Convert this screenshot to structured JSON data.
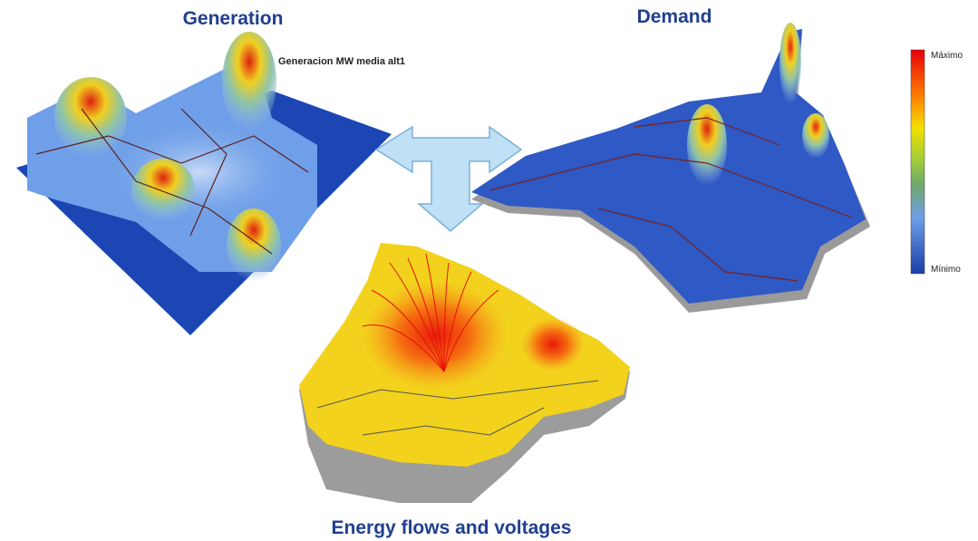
{
  "titles": {
    "generation": "Generation",
    "demand": "Demand",
    "flows": "Energy flows and voltages"
  },
  "generation_map": {
    "caption": "Generacion MW media alt1"
  },
  "legend": {
    "max": "Máximo",
    "min": "Mínimo"
  }
}
